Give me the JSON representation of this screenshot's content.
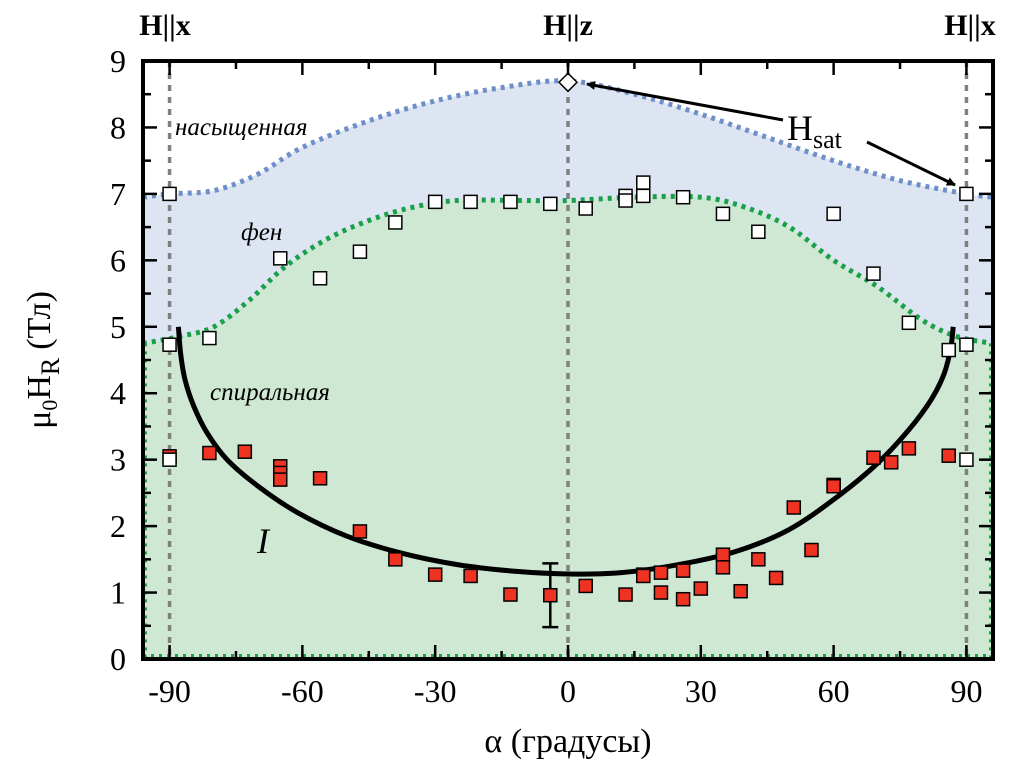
{
  "chart_data": {
    "type": "scatter",
    "xlabel": "α (градусы)",
    "ylabel_main": "μ",
    "ylabel_sub0": "0",
    "ylabel_H": "H",
    "ylabel_subR": "R",
    "ylabel_unit": "(Тл)",
    "xlim": [
      -96,
      96
    ],
    "ylim": [
      0,
      9
    ],
    "xticks": [
      -90,
      -60,
      -30,
      0,
      30,
      60,
      90
    ],
    "xtick_labels": [
      "-90",
      "-60",
      "-30",
      "0",
      "30",
      "60",
      "90"
    ],
    "yticks": [
      0,
      1,
      2,
      3,
      4,
      5,
      6,
      7,
      8,
      9
    ],
    "ytick_labels": [
      "0",
      "1",
      "2",
      "3",
      "4",
      "5",
      "6",
      "7",
      "8",
      "9"
    ],
    "top_labels": [
      {
        "text": "H||x",
        "x": -90
      },
      {
        "text": "H||z",
        "x": 0
      },
      {
        "text": "H||x",
        "x": 90
      }
    ],
    "region_labels": {
      "saturated": "насыщенная",
      "fan": "фен",
      "spiral": "спиральная",
      "phase_one": "I"
    },
    "annotation": {
      "main": "H",
      "sub": "sat"
    },
    "colors": {
      "saturated_fill": "#dde5f2",
      "phase_fill": "#cfe8d3",
      "sat_boundary": "#6f8fc8",
      "fan_boundary": "#1aa04a",
      "red_marker": "#ee3322",
      "open_marker": "#ffffff",
      "guide_lines": "#808080"
    },
    "sat_boundary": [
      {
        "x": -96,
        "y": 6.95
      },
      {
        "x": -90,
        "y": 7.0
      },
      {
        "x": -80,
        "y": 7.05
      },
      {
        "x": -70,
        "y": 7.3
      },
      {
        "x": -60,
        "y": 7.7
      },
      {
        "x": -45,
        "y": 8.1
      },
      {
        "x": -30,
        "y": 8.4
      },
      {
        "x": -15,
        "y": 8.6
      },
      {
        "x": 0,
        "y": 8.7
      },
      {
        "x": 15,
        "y": 8.5
      },
      {
        "x": 30,
        "y": 8.2
      },
      {
        "x": 45,
        "y": 7.85
      },
      {
        "x": 60,
        "y": 7.5
      },
      {
        "x": 75,
        "y": 7.2
      },
      {
        "x": 90,
        "y": 7.0
      },
      {
        "x": 96,
        "y": 6.95
      }
    ],
    "fan_boundary": [
      {
        "x": -96,
        "y": 4.75
      },
      {
        "x": -88,
        "y": 4.85
      },
      {
        "x": -80,
        "y": 5.0
      },
      {
        "x": -72,
        "y": 5.4
      },
      {
        "x": -64,
        "y": 5.9
      },
      {
        "x": -55,
        "y": 6.3
      },
      {
        "x": -45,
        "y": 6.6
      },
      {
        "x": -35,
        "y": 6.8
      },
      {
        "x": -25,
        "y": 6.9
      },
      {
        "x": -10,
        "y": 6.9
      },
      {
        "x": 0,
        "y": 6.9
      },
      {
        "x": 15,
        "y": 6.95
      },
      {
        "x": 30,
        "y": 6.95
      },
      {
        "x": 40,
        "y": 6.8
      },
      {
        "x": 50,
        "y": 6.5
      },
      {
        "x": 60,
        "y": 6.0
      },
      {
        "x": 70,
        "y": 5.6
      },
      {
        "x": 80,
        "y": 5.1
      },
      {
        "x": 88,
        "y": 4.85
      },
      {
        "x": 96,
        "y": 4.75
      }
    ],
    "spiral_curve": [
      {
        "x": -88,
        "y": 5.0
      },
      {
        "x": -87.5,
        "y": 4.6
      },
      {
        "x": -86.5,
        "y": 4.2
      },
      {
        "x": -84.5,
        "y": 3.8
      },
      {
        "x": -81.5,
        "y": 3.4
      },
      {
        "x": -77,
        "y": 3.0
      },
      {
        "x": -70,
        "y": 2.6
      },
      {
        "x": -61,
        "y": 2.2
      },
      {
        "x": -50,
        "y": 1.85
      },
      {
        "x": -38,
        "y": 1.6
      },
      {
        "x": -25,
        "y": 1.42
      },
      {
        "x": -12,
        "y": 1.32
      },
      {
        "x": 0,
        "y": 1.28
      },
      {
        "x": 12,
        "y": 1.3
      },
      {
        "x": 25,
        "y": 1.42
      },
      {
        "x": 38,
        "y": 1.62
      },
      {
        "x": 50,
        "y": 1.95
      },
      {
        "x": 61,
        "y": 2.45
      },
      {
        "x": 70,
        "y": 2.95
      },
      {
        "x": 77,
        "y": 3.45
      },
      {
        "x": 82,
        "y": 3.9
      },
      {
        "x": 85,
        "y": 4.3
      },
      {
        "x": 86.5,
        "y": 4.7
      },
      {
        "x": 87,
        "y": 5.0
      }
    ],
    "red_points": [
      {
        "x": -90,
        "y": 3.05
      },
      {
        "x": -81,
        "y": 3.1
      },
      {
        "x": -73,
        "y": 3.12
      },
      {
        "x": -65,
        "y": 2.9
      },
      {
        "x": -65,
        "y": 2.8
      },
      {
        "x": -65,
        "y": 2.7
      },
      {
        "x": -56,
        "y": 2.72
      },
      {
        "x": -47,
        "y": 1.92
      },
      {
        "x": -39,
        "y": 1.5
      },
      {
        "x": -30,
        "y": 1.27
      },
      {
        "x": -22,
        "y": 1.25
      },
      {
        "x": -13,
        "y": 0.97
      },
      {
        "x": -4,
        "y": 0.96
      },
      {
        "x": 4,
        "y": 1.1
      },
      {
        "x": 13,
        "y": 0.97
      },
      {
        "x": 17,
        "y": 1.27
      },
      {
        "x": 17,
        "y": 1.25
      },
      {
        "x": 21,
        "y": 1.3
      },
      {
        "x": 21,
        "y": 1.0
      },
      {
        "x": 26,
        "y": 1.33
      },
      {
        "x": 26,
        "y": 0.9
      },
      {
        "x": 30,
        "y": 1.06
      },
      {
        "x": 35,
        "y": 1.57
      },
      {
        "x": 35,
        "y": 1.38
      },
      {
        "x": 39,
        "y": 1.02
      },
      {
        "x": 43,
        "y": 1.5
      },
      {
        "x": 47,
        "y": 1.22
      },
      {
        "x": 51,
        "y": 2.28
      },
      {
        "x": 55,
        "y": 1.64
      },
      {
        "x": 60,
        "y": 2.62
      },
      {
        "x": 60,
        "y": 2.6
      },
      {
        "x": 69,
        "y": 3.03
      },
      {
        "x": 73,
        "y": 2.96
      },
      {
        "x": 77,
        "y": 3.17
      },
      {
        "x": 86,
        "y": 3.06
      }
    ],
    "open_points": [
      {
        "x": -90,
        "y": 7.0
      },
      {
        "x": -90,
        "y": 4.73
      },
      {
        "x": -90,
        "y": 3.0
      },
      {
        "x": -81,
        "y": 4.83
      },
      {
        "x": -65,
        "y": 6.03
      },
      {
        "x": -56,
        "y": 5.73
      },
      {
        "x": -47,
        "y": 6.13
      },
      {
        "x": -39,
        "y": 6.57
      },
      {
        "x": -30,
        "y": 6.88
      },
      {
        "x": -22,
        "y": 6.88
      },
      {
        "x": -13,
        "y": 6.88
      },
      {
        "x": -4,
        "y": 6.85
      },
      {
        "x": 4,
        "y": 6.78
      },
      {
        "x": 13,
        "y": 6.97
      },
      {
        "x": 13,
        "y": 6.9
      },
      {
        "x": 17,
        "y": 7.17
      },
      {
        "x": 17,
        "y": 6.97
      },
      {
        "x": 26,
        "y": 6.95
      },
      {
        "x": 35,
        "y": 6.7
      },
      {
        "x": 43,
        "y": 6.43
      },
      {
        "x": 60,
        "y": 6.7
      },
      {
        "x": 69,
        "y": 5.8
      },
      {
        "x": 77,
        "y": 5.06
      },
      {
        "x": 86,
        "y": 4.65
      },
      {
        "x": 90,
        "y": 7.0
      },
      {
        "x": 90,
        "y": 4.73
      },
      {
        "x": 90,
        "y": 3.0
      }
    ],
    "hsat_point": {
      "x": 0,
      "y": 8.68
    },
    "error_bar": {
      "x": -4,
      "y_low": 0.48,
      "y_high": 1.44
    }
  }
}
